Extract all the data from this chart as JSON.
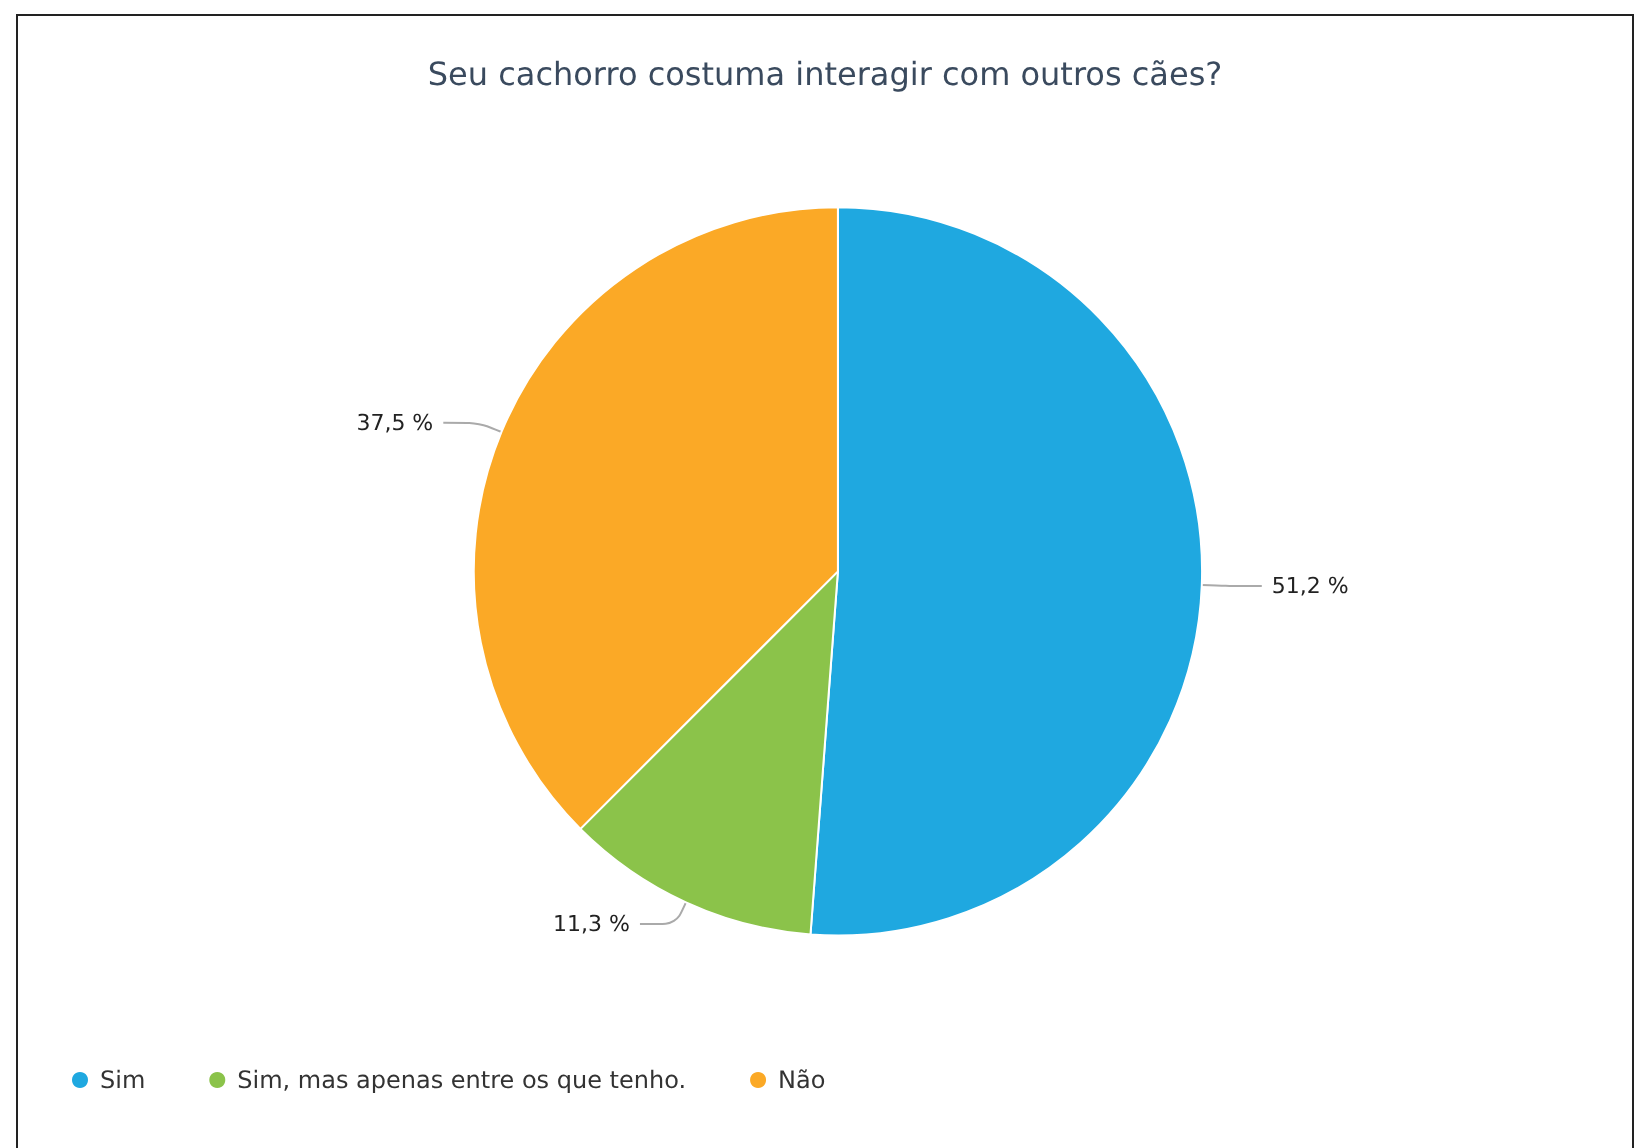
{
  "chart_data": {
    "type": "pie",
    "title": "Seu cachorro costuma interagir com outros cães?",
    "categories": [
      "Sim",
      "Sim, mas apenas entre os que tenho.",
      "Não"
    ],
    "values": [
      51.2,
      11.3,
      37.5
    ],
    "colors": [
      "#1fa8e0",
      "#8bc34a",
      "#fba926"
    ],
    "value_labels": [
      "51,2 %",
      "11,3 %",
      "37,5 %"
    ],
    "legend": "bottom left"
  }
}
